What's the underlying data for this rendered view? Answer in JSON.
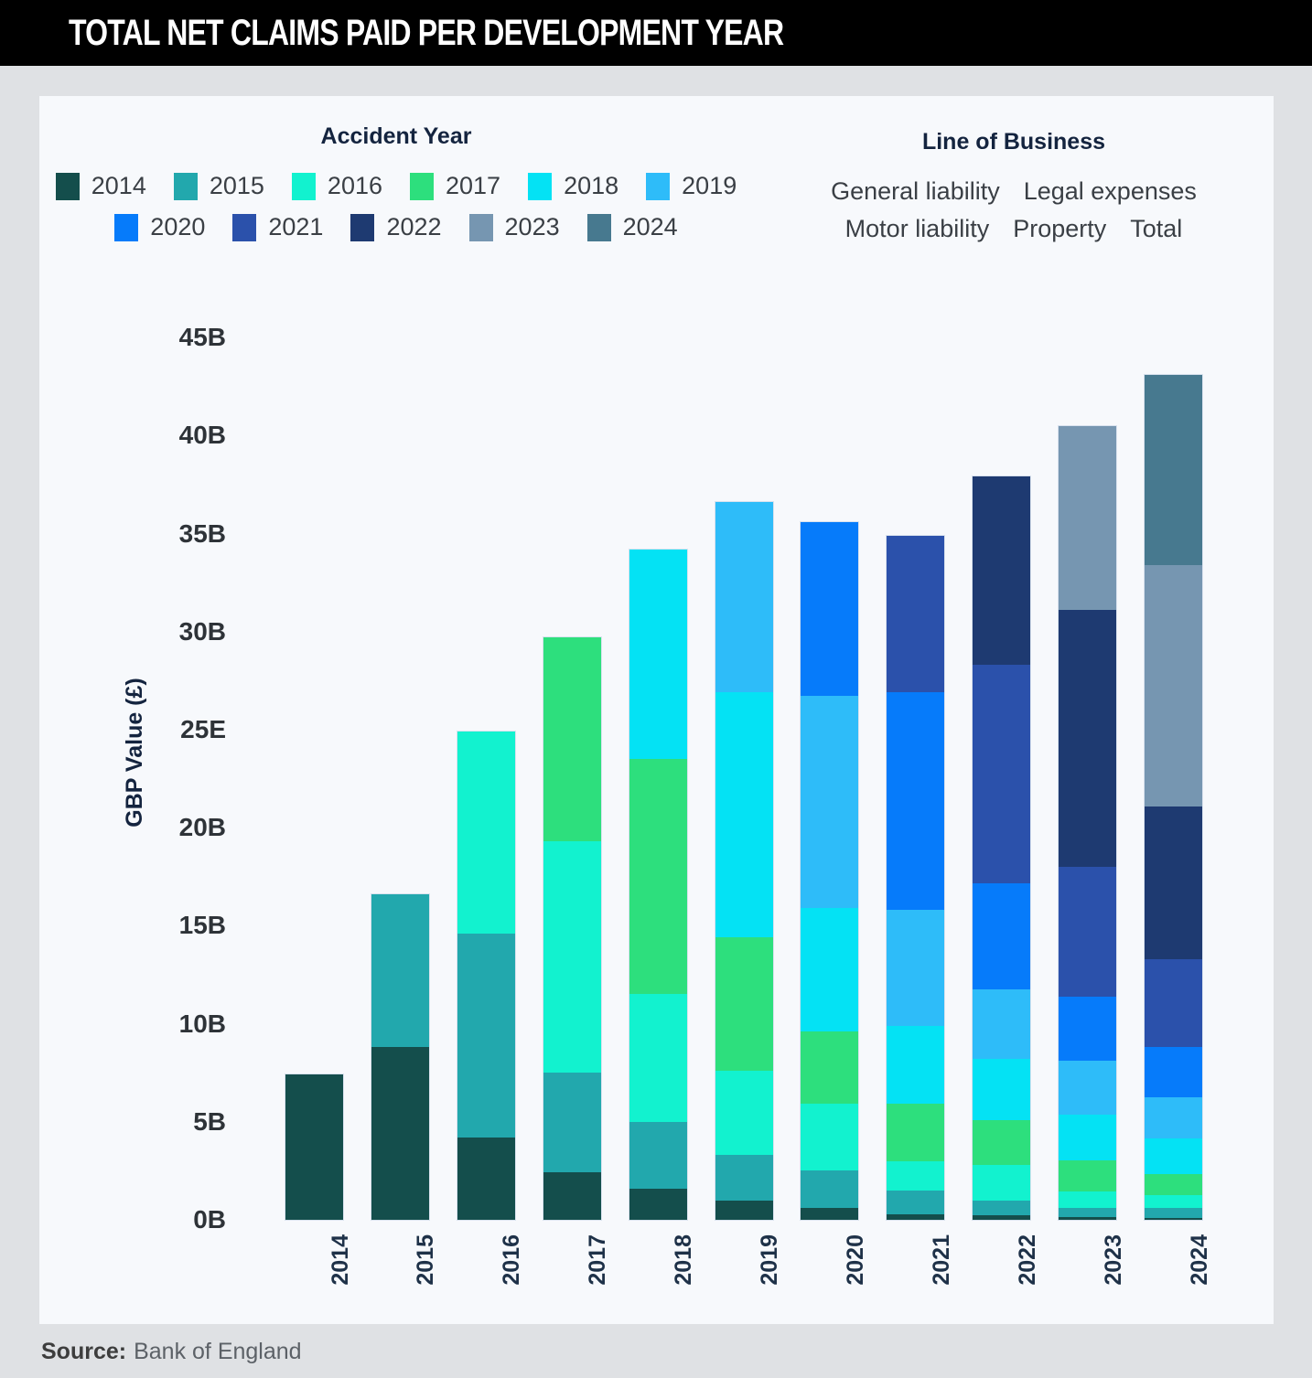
{
  "header": {
    "title": "TOTAL NET CLAIMS PAID PER DEVELOPMENT YEAR"
  },
  "legend": {
    "accident_year": {
      "title": "Accident Year",
      "row1": [
        {
          "label": "2014",
          "color": "#144e4c"
        },
        {
          "label": "2015",
          "color": "#22a8ad"
        },
        {
          "label": "2016",
          "color": "#12f2cf"
        },
        {
          "label": "2017",
          "color": "#2ddf7d"
        },
        {
          "label": "2018",
          "color": "#04e2f4"
        },
        {
          "label": "2019",
          "color": "#2ebcf9"
        }
      ],
      "row2": [
        {
          "label": "2020",
          "color": "#067bfa"
        },
        {
          "label": "2021",
          "color": "#2b51ab"
        },
        {
          "label": "2022",
          "color": "#1e3a71"
        },
        {
          "label": "2023",
          "color": "#7696b1"
        },
        {
          "label": "2024",
          "color": "#47798f"
        }
      ]
    },
    "line_of_business": {
      "title": "Line of Business",
      "row1": [
        "General liability",
        "Legal expenses"
      ],
      "row2": [
        "Motor liability",
        "Property",
        "Total"
      ]
    }
  },
  "chart_data": {
    "type": "bar",
    "subtype": "stacked",
    "title": "Total net claims paid per development year",
    "xlabel": "",
    "ylabel": "GBP Value (£)",
    "ylim": [
      0,
      45
    ],
    "grid": false,
    "legend_position": "top",
    "ytick_labels_top_to_bottom": [
      "45B",
      "40B",
      "35B",
      "30B",
      "25E",
      "20B",
      "15B",
      "10B",
      "5B",
      "0B"
    ],
    "categories": [
      "2014",
      "2015",
      "2016",
      "2017",
      "2018",
      "2019",
      "2020",
      "2021",
      "2022",
      "2023",
      "2024"
    ],
    "units": "GBP billions",
    "series": [
      {
        "name": "2014",
        "color": "#144e4c",
        "values": [
          7.4,
          8.8,
          4.2,
          2.4,
          1.6,
          1.0,
          0.6,
          0.3,
          0.25,
          0.15,
          0.1
        ]
      },
      {
        "name": "2015",
        "color": "#22a8ad",
        "values": [
          0,
          7.8,
          10.4,
          5.1,
          3.4,
          2.3,
          1.9,
          1.2,
          0.75,
          0.45,
          0.5
        ]
      },
      {
        "name": "2016",
        "color": "#12f2cf",
        "values": [
          0,
          0,
          10.3,
          11.8,
          6.5,
          4.3,
          3.4,
          1.5,
          1.8,
          0.85,
          0.65
        ]
      },
      {
        "name": "2017",
        "color": "#2ddf7d",
        "values": [
          0,
          0,
          0,
          10.4,
          12.0,
          6.8,
          3.7,
          2.9,
          2.3,
          1.6,
          1.1
        ]
      },
      {
        "name": "2018",
        "color": "#04e2f4",
        "values": [
          0,
          0,
          0,
          0,
          10.7,
          12.5,
          6.3,
          4.0,
          3.1,
          2.3,
          1.8
        ]
      },
      {
        "name": "2019",
        "color": "#2ebcf9",
        "values": [
          0,
          0,
          0,
          0,
          0,
          9.7,
          10.8,
          5.9,
          3.55,
          2.75,
          2.1
        ]
      },
      {
        "name": "2020",
        "color": "#067bfa",
        "values": [
          0,
          0,
          0,
          0,
          0,
          0,
          8.9,
          11.1,
          5.4,
          3.3,
          2.55
        ]
      },
      {
        "name": "2021",
        "color": "#2b51ab",
        "values": [
          0,
          0,
          0,
          0,
          0,
          0,
          0,
          8.0,
          11.15,
          6.6,
          4.5
        ]
      },
      {
        "name": "2022",
        "color": "#1e3a71",
        "values": [
          0,
          0,
          0,
          0,
          0,
          0,
          0,
          0,
          9.6,
          13.1,
          7.8
        ]
      },
      {
        "name": "2023",
        "color": "#7696b1",
        "values": [
          0,
          0,
          0,
          0,
          0,
          0,
          0,
          0,
          0,
          9.4,
          12.3
        ]
      },
      {
        "name": "2024",
        "color": "#47798f",
        "values": [
          0,
          0,
          0,
          0,
          0,
          0,
          0,
          0,
          0,
          0,
          9.7
        ]
      }
    ]
  },
  "source": {
    "label": "Source:",
    "text": "Bank of England"
  }
}
